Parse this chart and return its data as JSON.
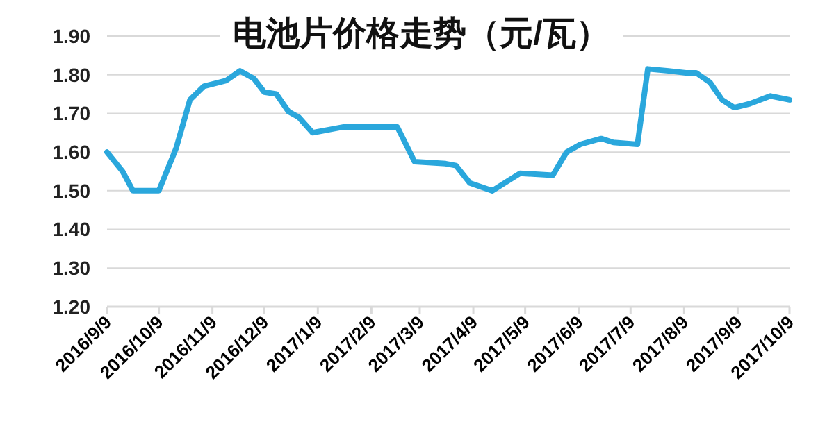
{
  "chart_data": {
    "type": "line",
    "title": "电池片价格走势（元/瓦）",
    "x": [
      "2016-09-09",
      "2016-09-18",
      "2016-09-24",
      "2016-10-09",
      "2016-10-19",
      "2016-10-27",
      "2016-11-04",
      "2016-11-17",
      "2016-11-25",
      "2016-12-03",
      "2016-12-09",
      "2016-12-16",
      "2016-12-23",
      "2016-12-29",
      "2017-01-06",
      "2017-01-24",
      "2017-02-06",
      "2017-02-24",
      "2017-03-06",
      "2017-03-24",
      "2017-03-30",
      "2017-04-07",
      "2017-04-20",
      "2017-05-06",
      "2017-05-25",
      "2017-06-02",
      "2017-06-10",
      "2017-06-22",
      "2017-06-29",
      "2017-07-13",
      "2017-07-19",
      "2017-07-31",
      "2017-08-10",
      "2017-08-16",
      "2017-08-24",
      "2017-08-31",
      "2017-09-07",
      "2017-09-16",
      "2017-09-28",
      "2017-10-09"
    ],
    "series": [
      {
        "color": "#2aa7dc",
        "values": [
          1.6,
          1.55,
          1.5,
          1.5,
          1.61,
          1.735,
          1.77,
          1.785,
          1.81,
          1.79,
          1.755,
          1.75,
          1.705,
          1.69,
          1.65,
          1.665,
          1.665,
          1.665,
          1.575,
          1.57,
          1.565,
          1.52,
          1.5,
          1.545,
          1.54,
          1.6,
          1.62,
          1.635,
          1.625,
          1.62,
          1.815,
          1.81,
          1.805,
          1.805,
          1.78,
          1.735,
          1.715,
          1.725,
          1.745,
          1.735
        ]
      }
    ],
    "xlim": [
      "2016-09-09",
      "2017-10-09"
    ],
    "xticks": [
      {
        "value": "2016-09-09",
        "label": "2016/9/9"
      },
      {
        "value": "2016-10-09",
        "label": "2016/10/9"
      },
      {
        "value": "2016-11-09",
        "label": "2016/11/9"
      },
      {
        "value": "2016-12-09",
        "label": "2016/12/9"
      },
      {
        "value": "2017-01-09",
        "label": "2017/1/9"
      },
      {
        "value": "2017-02-09",
        "label": "2017/2/9"
      },
      {
        "value": "2017-03-09",
        "label": "2017/3/9"
      },
      {
        "value": "2017-04-09",
        "label": "2017/4/9"
      },
      {
        "value": "2017-05-09",
        "label": "2017/5/9"
      },
      {
        "value": "2017-06-09",
        "label": "2017/6/9"
      },
      {
        "value": "2017-07-09",
        "label": "2017/7/9"
      },
      {
        "value": "2017-08-09",
        "label": "2017/8/9"
      },
      {
        "value": "2017-09-09",
        "label": "2017/9/9"
      },
      {
        "value": "2017-10-09",
        "label": "2017/10/9"
      }
    ],
    "ylim": [
      1.2,
      1.9
    ],
    "yticks": [
      {
        "value": 1.2,
        "label": "1.20"
      },
      {
        "value": 1.3,
        "label": "1.30"
      },
      {
        "value": 1.4,
        "label": "1.40"
      },
      {
        "value": 1.5,
        "label": "1.50"
      },
      {
        "value": 1.6,
        "label": "1.60"
      },
      {
        "value": 1.7,
        "label": "1.70"
      },
      {
        "value": 1.8,
        "label": "1.80"
      },
      {
        "value": 1.9,
        "label": "1.90"
      }
    ],
    "grid": "y",
    "marker": "none",
    "line_style": "solid"
  }
}
